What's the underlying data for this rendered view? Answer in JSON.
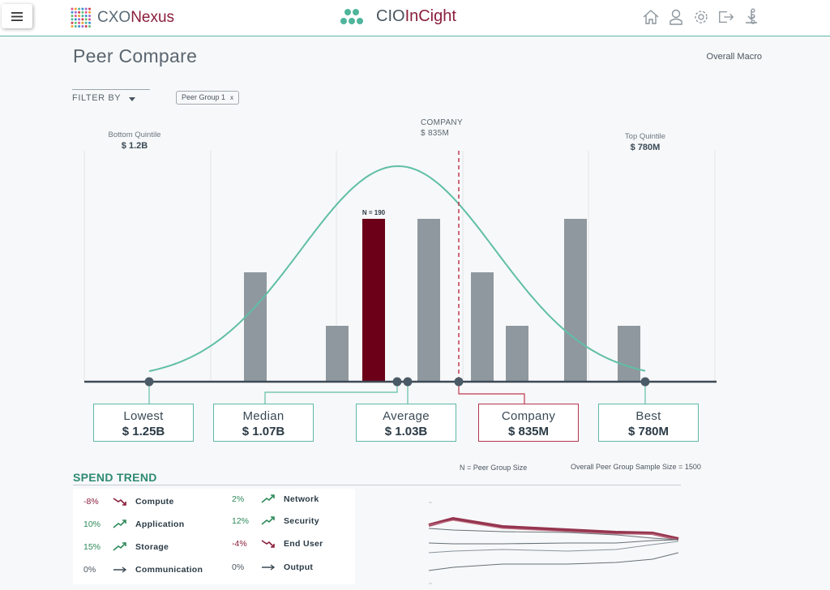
{
  "header": {
    "brand_left_prefix": "CXO ",
    "brand_left_accent": "Nexus",
    "brand_center_prefix": "CIO ",
    "brand_center_accent": "InCight",
    "icons": [
      "home-icon",
      "user-icon",
      "settings-icon",
      "logout-icon",
      "download-icon",
      "more-icon"
    ]
  },
  "page": {
    "title": "Peer Compare",
    "overall_macro": "Overall Macro",
    "filter_by": "FILTER BY",
    "chip_label": "Peer Group 1",
    "chip_close": "x"
  },
  "quintiles": {
    "bottom_label": "Bottom Quintile",
    "bottom_value": "$ 1.2B",
    "top_label": "Top Quintile",
    "top_value": "$ 780M"
  },
  "company_marker": {
    "label": "COMPANY",
    "value": "$ 835M"
  },
  "stats": {
    "lowest": {
      "label": "Lowest",
      "value": "$ 1.25B"
    },
    "median": {
      "label": "Median",
      "value": "$ 1.07B"
    },
    "average": {
      "label": "Average",
      "value": "$ 1.03B"
    },
    "company": {
      "label": "Company",
      "value": "$ 835M"
    },
    "best": {
      "label": "Best",
      "value": "$ 780M"
    }
  },
  "chart_data": {
    "type": "bar",
    "values": [
      45,
      23,
      67,
      67,
      45,
      23,
      67,
      23
    ],
    "highlight_index": 2,
    "highlight_label": "N = 190",
    "colors": {
      "bar": "#8f989e",
      "highlight": "#6b0018",
      "curve": "#5fbfa5",
      "company_line": "#c0384f",
      "axis": "#3e4a55"
    }
  },
  "legend": {
    "n_note": "N = Peer Group Size",
    "sample_note": "Overall Peer Group Sample Size = 1500"
  },
  "spend_trend": {
    "title": "SPEND TREND",
    "items": [
      {
        "pct": "-8%",
        "name": "Compute",
        "dir": "down"
      },
      {
        "pct": "10%",
        "name": "Application",
        "dir": "up"
      },
      {
        "pct": "15%",
        "name": "Storage",
        "dir": "up"
      },
      {
        "pct": "0%",
        "name": "Communication",
        "dir": "flat"
      },
      {
        "pct": "2%",
        "name": "Network",
        "dir": "up"
      },
      {
        "pct": "12%",
        "name": "Security",
        "dir": "up"
      },
      {
        "pct": "-4%",
        "name": "End User",
        "dir": "down"
      },
      {
        "pct": "0%",
        "name": "Output",
        "dir": "flat"
      }
    ]
  }
}
